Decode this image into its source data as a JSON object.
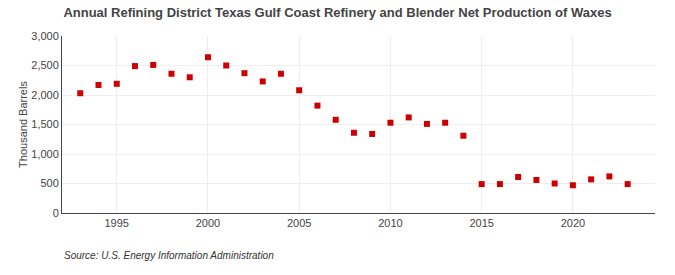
{
  "chart_data": {
    "type": "scatter",
    "title": "Annual Refining District Texas Gulf Coast Refinery and Blender Net Production of Waxes",
    "ylabel": "Thousand Barrels",
    "source": "Source: U.S. Energy Information Administration",
    "x": [
      1993,
      1994,
      1995,
      1996,
      1997,
      1998,
      1999,
      2000,
      2001,
      2002,
      2003,
      2004,
      2005,
      2006,
      2007,
      2008,
      2009,
      2010,
      2011,
      2012,
      2013,
      2014,
      2015,
      2016,
      2017,
      2018,
      2019,
      2020,
      2021,
      2022,
      2023
    ],
    "values": [
      2030,
      2170,
      2190,
      2490,
      2510,
      2360,
      2300,
      2640,
      2500,
      2370,
      2230,
      2360,
      2080,
      1820,
      1580,
      1360,
      1340,
      1530,
      1620,
      1510,
      1530,
      1310,
      490,
      490,
      610,
      560,
      500,
      470,
      570,
      620,
      490
    ],
    "color": "#cc0000",
    "marker": "square",
    "xlim": [
      1992.0,
      2024.5
    ],
    "xticks": [
      1995,
      2000,
      2005,
      2010,
      2015,
      2020
    ],
    "ylim": [
      0,
      3000
    ],
    "yticks": [
      0,
      500,
      {
        "value": 1000,
        "label": "1,000"
      },
      {
        "value": 1500,
        "label": "1,500"
      },
      {
        "value": 2000,
        "label": "2,000"
      },
      {
        "value": 2500,
        "label": "2,500"
      },
      {
        "value": 3000,
        "label": "3,000"
      }
    ],
    "grid": true
  }
}
